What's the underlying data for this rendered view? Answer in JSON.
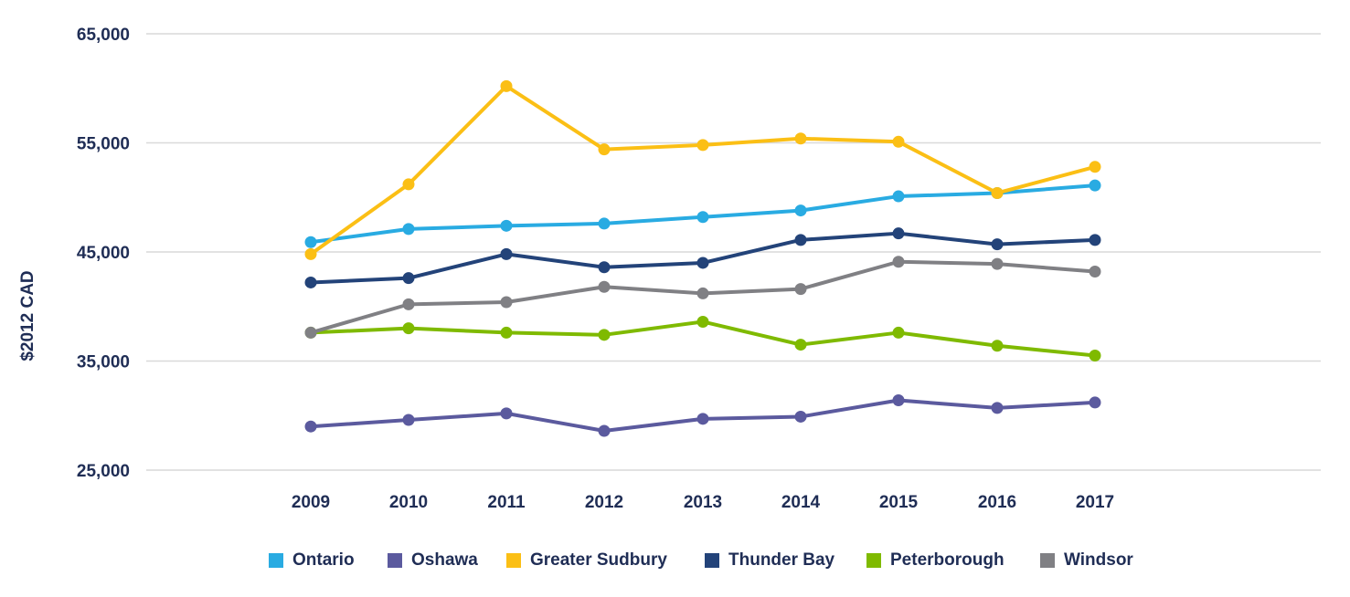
{
  "chart_data": {
    "type": "line",
    "title": "",
    "xlabel": "",
    "ylabel": "$2012 CAD",
    "ylim": [
      25000,
      65000
    ],
    "yticks": [
      25000,
      35000,
      45000,
      55000,
      65000
    ],
    "ytick_labels": [
      "25,000",
      "35,000",
      "45,000",
      "55,000",
      "65,000"
    ],
    "grid": true,
    "legend_position": "bottom-center",
    "categories": [
      "2009",
      "2010",
      "2011",
      "2012",
      "2013",
      "2014",
      "2015",
      "2016",
      "2017"
    ],
    "series": [
      {
        "name": "Ontario",
        "color": "#29abe2",
        "values": [
          45900,
          47100,
          47400,
          47600,
          48200,
          48800,
          50100,
          50400,
          51100
        ]
      },
      {
        "name": "Oshawa",
        "color": "#5b5a9e",
        "values": [
          29000,
          29600,
          30200,
          28600,
          29700,
          29900,
          31400,
          30700,
          31200
        ]
      },
      {
        "name": "Greater Sudbury",
        "color": "#fbbf15",
        "values": [
          44800,
          51200,
          60200,
          54400,
          54800,
          55400,
          55100,
          50400,
          52800
        ]
      },
      {
        "name": "Thunder Bay",
        "color": "#234379",
        "values": [
          42200,
          42600,
          44800,
          43600,
          44000,
          46100,
          46700,
          45700,
          46100
        ]
      },
      {
        "name": "Peterborough",
        "color": "#7fba00",
        "values": [
          37600,
          38000,
          37600,
          37400,
          38600,
          36500,
          37600,
          36400,
          35500
        ]
      },
      {
        "name": "Windsor",
        "color": "#808084",
        "values": [
          37600,
          40200,
          40400,
          41800,
          41200,
          41600,
          44100,
          43900,
          43200
        ]
      }
    ]
  }
}
